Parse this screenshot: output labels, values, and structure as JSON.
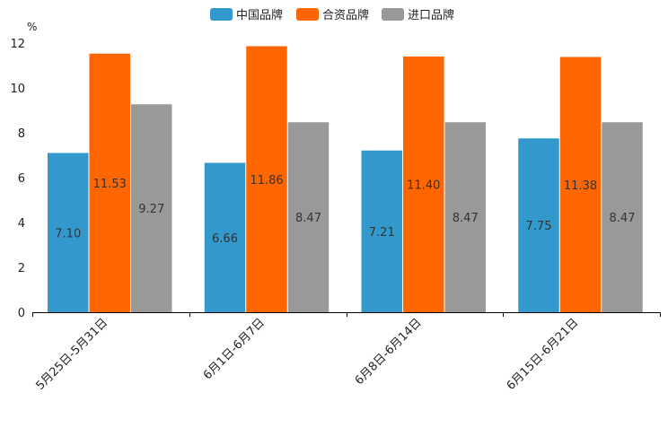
{
  "chart_data": {
    "type": "bar",
    "title": "",
    "xlabel": "",
    "ylabel": "%",
    "ylim": [
      0,
      12
    ],
    "yticks": [
      0,
      2,
      4,
      6,
      8,
      10,
      12
    ],
    "categories": [
      "5月25日-5月31日",
      "6月1日-6月7日",
      "6月8日-6月14日",
      "6月15日-6月21日"
    ],
    "series": [
      {
        "name": "中国品牌",
        "color": "#3399CC",
        "values": [
          7.1,
          6.66,
          7.21,
          7.75
        ]
      },
      {
        "name": "合资品牌",
        "color": "#FF6600",
        "values": [
          11.53,
          11.86,
          11.4,
          11.38
        ]
      },
      {
        "name": "进口品牌",
        "color": "#999999",
        "values": [
          9.27,
          8.47,
          8.47,
          8.47
        ]
      }
    ],
    "legend_position": "top-center",
    "grid": false
  }
}
